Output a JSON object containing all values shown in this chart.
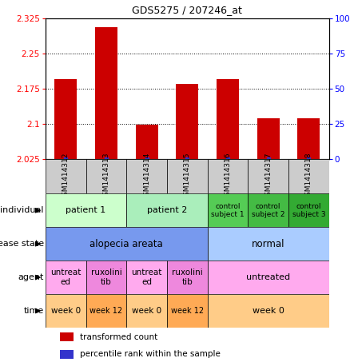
{
  "title": "GDS5275 / 207246_at",
  "samples": [
    "GSM1414312",
    "GSM1414313",
    "GSM1414314",
    "GSM1414315",
    "GSM1414316",
    "GSM1414317",
    "GSM1414318"
  ],
  "bar_values": [
    2.195,
    2.305,
    2.098,
    2.185,
    2.195,
    2.112,
    2.112
  ],
  "ylim_left": [
    2.025,
    2.325
  ],
  "ylim_right": [
    0,
    100
  ],
  "yticks_left": [
    2.025,
    2.1,
    2.175,
    2.25,
    2.325
  ],
  "ytick_labels_left": [
    "2.025",
    "2.1",
    "2.175",
    "2.25",
    "2.325"
  ],
  "yticks_right": [
    0,
    25,
    50,
    75,
    100
  ],
  "ytick_labels_right": [
    "0",
    "25",
    "50",
    "75",
    "100%"
  ],
  "grid_lines": [
    2.1,
    2.175,
    2.25
  ],
  "bar_color": "#cc0000",
  "blue_color": "#3333cc",
  "sample_box_color": "#cccccc",
  "row_labels": [
    "individual",
    "disease state",
    "agent",
    "time"
  ],
  "individual_data": [
    {
      "label": "patient 1",
      "span": [
        0,
        1
      ],
      "color": "#ccffcc",
      "text_size": 8
    },
    {
      "label": "patient 2",
      "span": [
        2,
        3
      ],
      "color": "#aaeebb",
      "text_size": 8
    },
    {
      "label": "control\nsubject 1",
      "span": [
        4,
        4
      ],
      "color": "#55cc55",
      "text_size": 6.5
    },
    {
      "label": "control\nsubject 2",
      "span": [
        5,
        5
      ],
      "color": "#44bb44",
      "text_size": 6.5
    },
    {
      "label": "control\nsubject 3",
      "span": [
        6,
        6
      ],
      "color": "#33aa33",
      "text_size": 6.5
    }
  ],
  "disease_data": [
    {
      "label": "alopecia areata",
      "span": [
        0,
        3
      ],
      "color": "#7799ee",
      "text_size": 8.5
    },
    {
      "label": "normal",
      "span": [
        4,
        6
      ],
      "color": "#aaccff",
      "text_size": 8.5
    }
  ],
  "agent_data": [
    {
      "label": "untreat\ned",
      "span": [
        0,
        0
      ],
      "color": "#ffaaee",
      "text_size": 7.5
    },
    {
      "label": "ruxolini\ntib",
      "span": [
        1,
        1
      ],
      "color": "#ee88dd",
      "text_size": 7.5
    },
    {
      "label": "untreat\ned",
      "span": [
        2,
        2
      ],
      "color": "#ffaaee",
      "text_size": 7.5
    },
    {
      "label": "ruxolini\ntib",
      "span": [
        3,
        3
      ],
      "color": "#ee88dd",
      "text_size": 7.5
    },
    {
      "label": "untreated",
      "span": [
        4,
        6
      ],
      "color": "#ffaaee",
      "text_size": 8
    }
  ],
  "time_data": [
    {
      "label": "week 0",
      "span": [
        0,
        0
      ],
      "color": "#ffcc88",
      "text_size": 7.5
    },
    {
      "label": "week 12",
      "span": [
        1,
        1
      ],
      "color": "#ffaa55",
      "text_size": 7
    },
    {
      "label": "week 0",
      "span": [
        2,
        2
      ],
      "color": "#ffcc88",
      "text_size": 7.5
    },
    {
      "label": "week 12",
      "span": [
        3,
        3
      ],
      "color": "#ffaa55",
      "text_size": 7
    },
    {
      "label": "week 0",
      "span": [
        4,
        6
      ],
      "color": "#ffcc88",
      "text_size": 8
    }
  ],
  "legend_labels": [
    "transformed count",
    "percentile rank within the sample"
  ],
  "legend_colors": [
    "#cc0000",
    "#3333cc"
  ]
}
